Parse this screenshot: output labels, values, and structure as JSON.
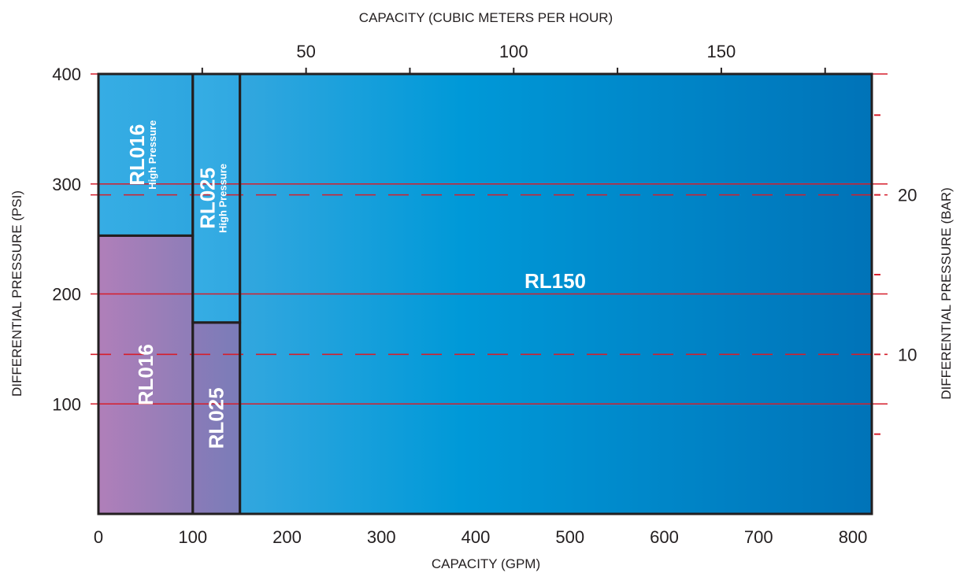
{
  "chart_data": {
    "type": "area",
    "title": "",
    "xlabel_bottom": "CAPACITY (GPM)",
    "xlabel_top": "CAPACITY (CUBIC METERS PER HOUR)",
    "ylabel_left": "DIFFERENTIAL PRESSURE (PSI)",
    "ylabel_right": "DIFFERENTIAL PRESSURE (BAR)",
    "xlim": [
      0,
      820
    ],
    "ylim": [
      0,
      400
    ],
    "x_ticks": [
      "0",
      "100",
      "200",
      "300",
      "400",
      "500",
      "600",
      "700",
      "800"
    ],
    "y_ticks": [
      "100",
      "200",
      "300",
      "400"
    ],
    "top_axis": {
      "unit_ticks": [
        25,
        50,
        75,
        100,
        125,
        150,
        175
      ],
      "labels": [
        {
          "value": 50,
          "text": "50"
        },
        {
          "value": 100,
          "text": "100"
        },
        {
          "value": 150,
          "text": "150"
        }
      ]
    },
    "right_axis": {
      "unit_ticks": [
        5,
        10,
        15,
        20,
        25
      ],
      "labels": [
        {
          "value": 10,
          "text": "10"
        },
        {
          "value": 20,
          "text": "20"
        }
      ]
    },
    "psi_gridlines": [
      100,
      200,
      300,
      400
    ],
    "bar_gridlines": [
      10,
      20
    ],
    "regions": [
      {
        "name": "RL150",
        "x": [
          150,
          820
        ],
        "y": [
          0,
          400
        ],
        "label": "RL150",
        "sublabel": "",
        "color_start": "#33a7df",
        "color_mid": "#0099d8",
        "color_end": "#0073b8"
      },
      {
        "name": "RL016",
        "x": [
          0,
          100
        ],
        "y": [
          0,
          253
        ],
        "label": "RL016",
        "sublabel": "",
        "color_start": "#b07fb9",
        "color_end": "#8e7db8"
      },
      {
        "name": "RL016 High Pressure",
        "x": [
          0,
          100
        ],
        "y": [
          253,
          400
        ],
        "label": "RL016",
        "sublabel": "High Pressure",
        "color_start": "#36ade4",
        "color_end": "#2ea6e0"
      },
      {
        "name": "RL025",
        "x": [
          100,
          150
        ],
        "y": [
          0,
          174
        ],
        "label": "RL025",
        "sublabel": "",
        "color_start": "#8a7bb8",
        "color_end": "#7a7cb8"
      },
      {
        "name": "RL025 High Pressure",
        "x": [
          100,
          150
        ],
        "y": [
          174,
          400
        ],
        "label": "RL025",
        "sublabel": "High Pressure",
        "color_start": "#36ade4",
        "color_end": "#30a8e1"
      }
    ],
    "colors": {
      "gridline": "#d61e2b",
      "border": "#231f20",
      "text": "#231f20",
      "label": "#ffffff"
    }
  }
}
